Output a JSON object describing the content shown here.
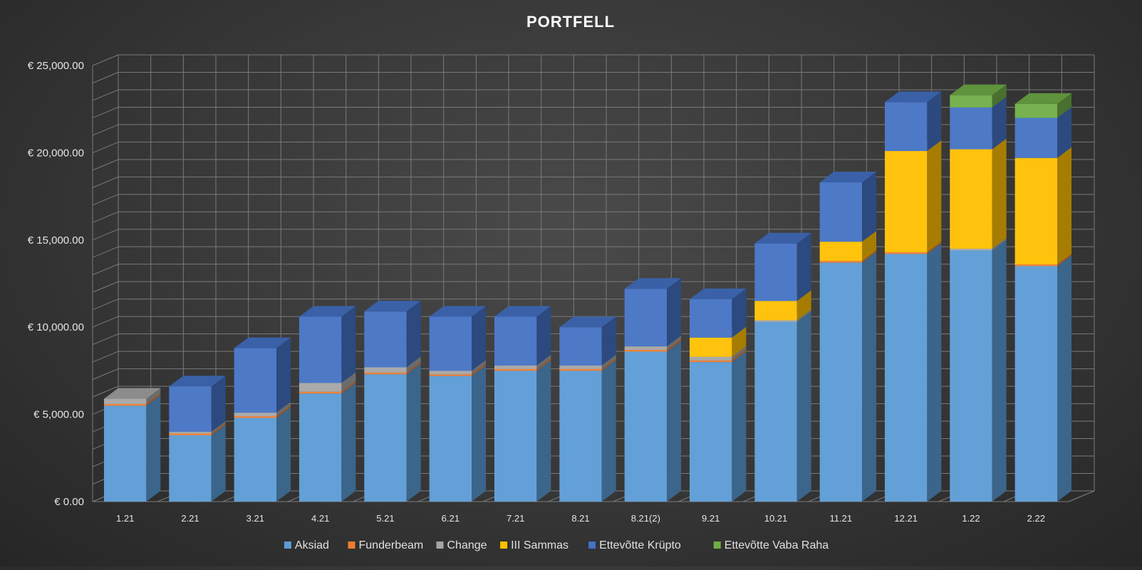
{
  "chart_data": {
    "type": "bar",
    "stacked": true,
    "style": "3d-column",
    "title": "PORTFELL",
    "xlabel": "",
    "ylabel": "",
    "ylim": [
      0,
      25000
    ],
    "y_ticks": [
      0,
      5000,
      10000,
      15000,
      20000,
      25000
    ],
    "y_tick_labels": [
      "€ 0.00",
      "€ 5,000.00",
      "€ 10,000.00",
      "€ 15,000.00",
      "€ 20,000.00",
      "€ 25,000.00"
    ],
    "grid": true,
    "legend_position": "bottom",
    "categories": [
      "1.21",
      "2.21",
      "3.21",
      "4.21",
      "5.21",
      "6.21",
      "7.21",
      "8.21",
      "8.21(2)",
      "9.21",
      "10.21",
      "11.21",
      "12.21",
      "1.22",
      "2.22"
    ],
    "series": [
      {
        "name": "Aksiad",
        "color": "#5b9bd5",
        "values": [
          5500,
          3800,
          4800,
          6200,
          7300,
          7200,
          7500,
          7500,
          8600,
          8000,
          10300,
          13700,
          14200,
          14400,
          13500
        ]
      },
      {
        "name": "Funderbeam",
        "color": "#ed7d31",
        "values": [
          100,
          100,
          100,
          100,
          100,
          100,
          100,
          100,
          100,
          100,
          0,
          100,
          100,
          0,
          100
        ]
      },
      {
        "name": "Change",
        "color": "#a5a5a5",
        "values": [
          300,
          100,
          200,
          500,
          300,
          200,
          200,
          200,
          200,
          200,
          100,
          0,
          0,
          100,
          0
        ]
      },
      {
        "name": "III Sammas",
        "color": "#ffc000",
        "values": [
          0,
          0,
          0,
          0,
          0,
          0,
          0,
          0,
          0,
          1100,
          1100,
          1100,
          5800,
          5700,
          6100
        ]
      },
      {
        "name": "Ettevõtte Krüpto",
        "color": "#4472c4",
        "values": [
          0,
          2600,
          3700,
          3800,
          3200,
          3100,
          2800,
          2200,
          3300,
          2200,
          3300,
          3400,
          2800,
          2400,
          2300
        ]
      },
      {
        "name": "Ettevõtte Vaba Raha",
        "color": "#70ad47",
        "values": [
          0,
          0,
          0,
          0,
          0,
          0,
          0,
          0,
          0,
          0,
          0,
          0,
          0,
          700,
          800
        ]
      }
    ]
  }
}
